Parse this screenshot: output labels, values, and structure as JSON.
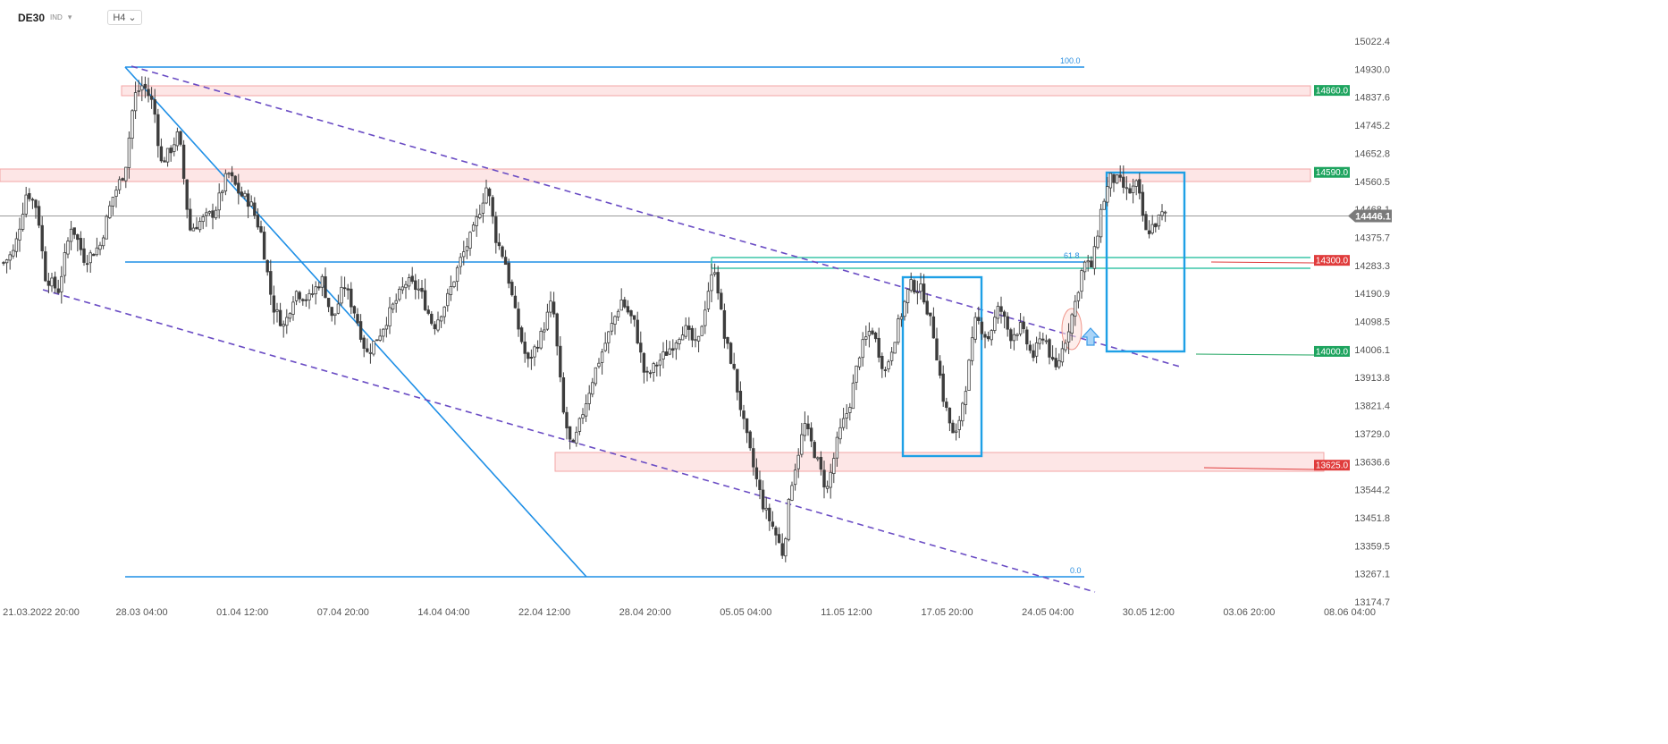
{
  "header": {
    "symbol": "DE30",
    "index_tag": "IND",
    "timeframe": "H4"
  },
  "current_price": "14446.1",
  "price_tags": [
    {
      "label": "14860.0",
      "price": 14860.0,
      "color": "#1ea45f"
    },
    {
      "label": "14590.0",
      "price": 14590.0,
      "color": "#1ea45f"
    },
    {
      "label": "14300.0",
      "price": 14300.0,
      "color": "#e03c3c"
    },
    {
      "label": "14000.0",
      "price": 14000.0,
      "color": "#1ea45f"
    },
    {
      "label": "13625.0",
      "price": 13625.0,
      "color": "#e03c3c"
    }
  ],
  "fib_labels": [
    {
      "label": "100.0",
      "price": 14930.0
    },
    {
      "label": "61.8",
      "price": 14303.0
    },
    {
      "label": "0.0",
      "price": 13267.1
    }
  ],
  "colors": {
    "up": "#ffffff",
    "down": "#3d3d3d",
    "fib": "#1e8fe6",
    "channel": "#6a4cc4",
    "zone": "#f3a6a6",
    "box": "#1ea0e6",
    "teal": "#3cc6a8"
  },
  "chart_data": {
    "type": "candlestick",
    "symbol": "DE30",
    "timeframe": "H4",
    "y_ticks": [
      "15022.4",
      "14930.0",
      "14837.6",
      "14745.2",
      "14652.8",
      "14560.5",
      "14468.1",
      "14375.7",
      "14283.3",
      "14190.9",
      "14098.5",
      "14006.1",
      "13913.8",
      "13821.4",
      "13729.0",
      "13636.6",
      "13544.2",
      "13451.8",
      "13359.5",
      "13267.1",
      "13174.7"
    ],
    "x_ticks": [
      "21.03.2022  20:00",
      "28.03  04:00",
      "01.04  12:00",
      "07.04  20:00",
      "14.04  04:00",
      "22.04  12:00",
      "28.04  20:00",
      "05.05  04:00",
      "11.05  12:00",
      "17.05  20:00",
      "24.05  04:00",
      "30.05  12:00",
      "03.06  20:00",
      "08.06  04:00"
    ],
    "last_price": 14446.1,
    "levels": [
      14860.0,
      14590.0,
      14300.0,
      14000.0,
      13625.0
    ],
    "fibonacci": {
      "high": 14930.0,
      "low": 13267.1,
      "levels": [
        "100.0",
        "61.8",
        "0.0"
      ]
    },
    "close_path": [
      [
        0,
        14280
      ],
      [
        16,
        14330
      ],
      [
        30,
        14530
      ],
      [
        42,
        14470
      ],
      [
        50,
        14250
      ],
      [
        65,
        14200
      ],
      [
        80,
        14420
      ],
      [
        95,
        14300
      ],
      [
        112,
        14350
      ],
      [
        125,
        14500
      ],
      [
        140,
        14600
      ],
      [
        150,
        14840
      ],
      [
        160,
        14880
      ],
      [
        172,
        14810
      ],
      [
        180,
        14620
      ],
      [
        190,
        14660
      ],
      [
        200,
        14720
      ],
      [
        212,
        14400
      ],
      [
        225,
        14430
      ],
      [
        240,
        14460
      ],
      [
        255,
        14590
      ],
      [
        268,
        14520
      ],
      [
        280,
        14490
      ],
      [
        292,
        14390
      ],
      [
        305,
        14150
      ],
      [
        318,
        14080
      ],
      [
        330,
        14200
      ],
      [
        345,
        14170
      ],
      [
        360,
        14240
      ],
      [
        372,
        14100
      ],
      [
        385,
        14220
      ],
      [
        398,
        14120
      ],
      [
        410,
        13990
      ],
      [
        425,
        14060
      ],
      [
        440,
        14150
      ],
      [
        455,
        14230
      ],
      [
        470,
        14200
      ],
      [
        485,
        14080
      ],
      [
        500,
        14170
      ],
      [
        515,
        14300
      ],
      [
        530,
        14400
      ],
      [
        545,
        14550
      ],
      [
        555,
        14370
      ],
      [
        565,
        14300
      ],
      [
        578,
        14100
      ],
      [
        590,
        13960
      ],
      [
        605,
        14050
      ],
      [
        618,
        14170
      ],
      [
        630,
        13800
      ],
      [
        640,
        13670
      ],
      [
        652,
        13800
      ],
      [
        665,
        13930
      ],
      [
        680,
        14050
      ],
      [
        695,
        14170
      ],
      [
        710,
        14090
      ],
      [
        722,
        13910
      ],
      [
        738,
        13970
      ],
      [
        752,
        14020
      ],
      [
        765,
        14080
      ],
      [
        780,
        14010
      ],
      [
        792,
        14200
      ],
      [
        800,
        14280
      ],
      [
        810,
        14050
      ],
      [
        820,
        13950
      ],
      [
        832,
        13760
      ],
      [
        845,
        13590
      ],
      [
        855,
        13480
      ],
      [
        865,
        13420
      ],
      [
        876,
        13330
      ],
      [
        885,
        13560
      ],
      [
        900,
        13760
      ],
      [
        912,
        13660
      ],
      [
        925,
        13540
      ],
      [
        938,
        13720
      ],
      [
        950,
        13820
      ],
      [
        962,
        14000
      ],
      [
        975,
        14080
      ],
      [
        990,
        13930
      ],
      [
        1005,
        14090
      ],
      [
        1018,
        14220
      ],
      [
        1032,
        14200
      ],
      [
        1045,
        14050
      ],
      [
        1055,
        13850
      ],
      [
        1068,
        13700
      ],
      [
        1080,
        13880
      ],
      [
        1092,
        14110
      ],
      [
        1105,
        14040
      ],
      [
        1118,
        14150
      ],
      [
        1130,
        14050
      ],
      [
        1142,
        14080
      ],
      [
        1155,
        13980
      ],
      [
        1168,
        14060
      ],
      [
        1180,
        13930
      ],
      [
        1192,
        14040
      ],
      [
        1202,
        14150
      ],
      [
        1212,
        14290
      ],
      [
        1222,
        14280
      ],
      [
        1232,
        14470
      ],
      [
        1242,
        14570
      ],
      [
        1252,
        14560
      ],
      [
        1262,
        14520
      ],
      [
        1272,
        14550
      ],
      [
        1282,
        14390
      ],
      [
        1292,
        14420
      ],
      [
        1300,
        14450
      ],
      [
        1306,
        14446.1
      ]
    ]
  }
}
